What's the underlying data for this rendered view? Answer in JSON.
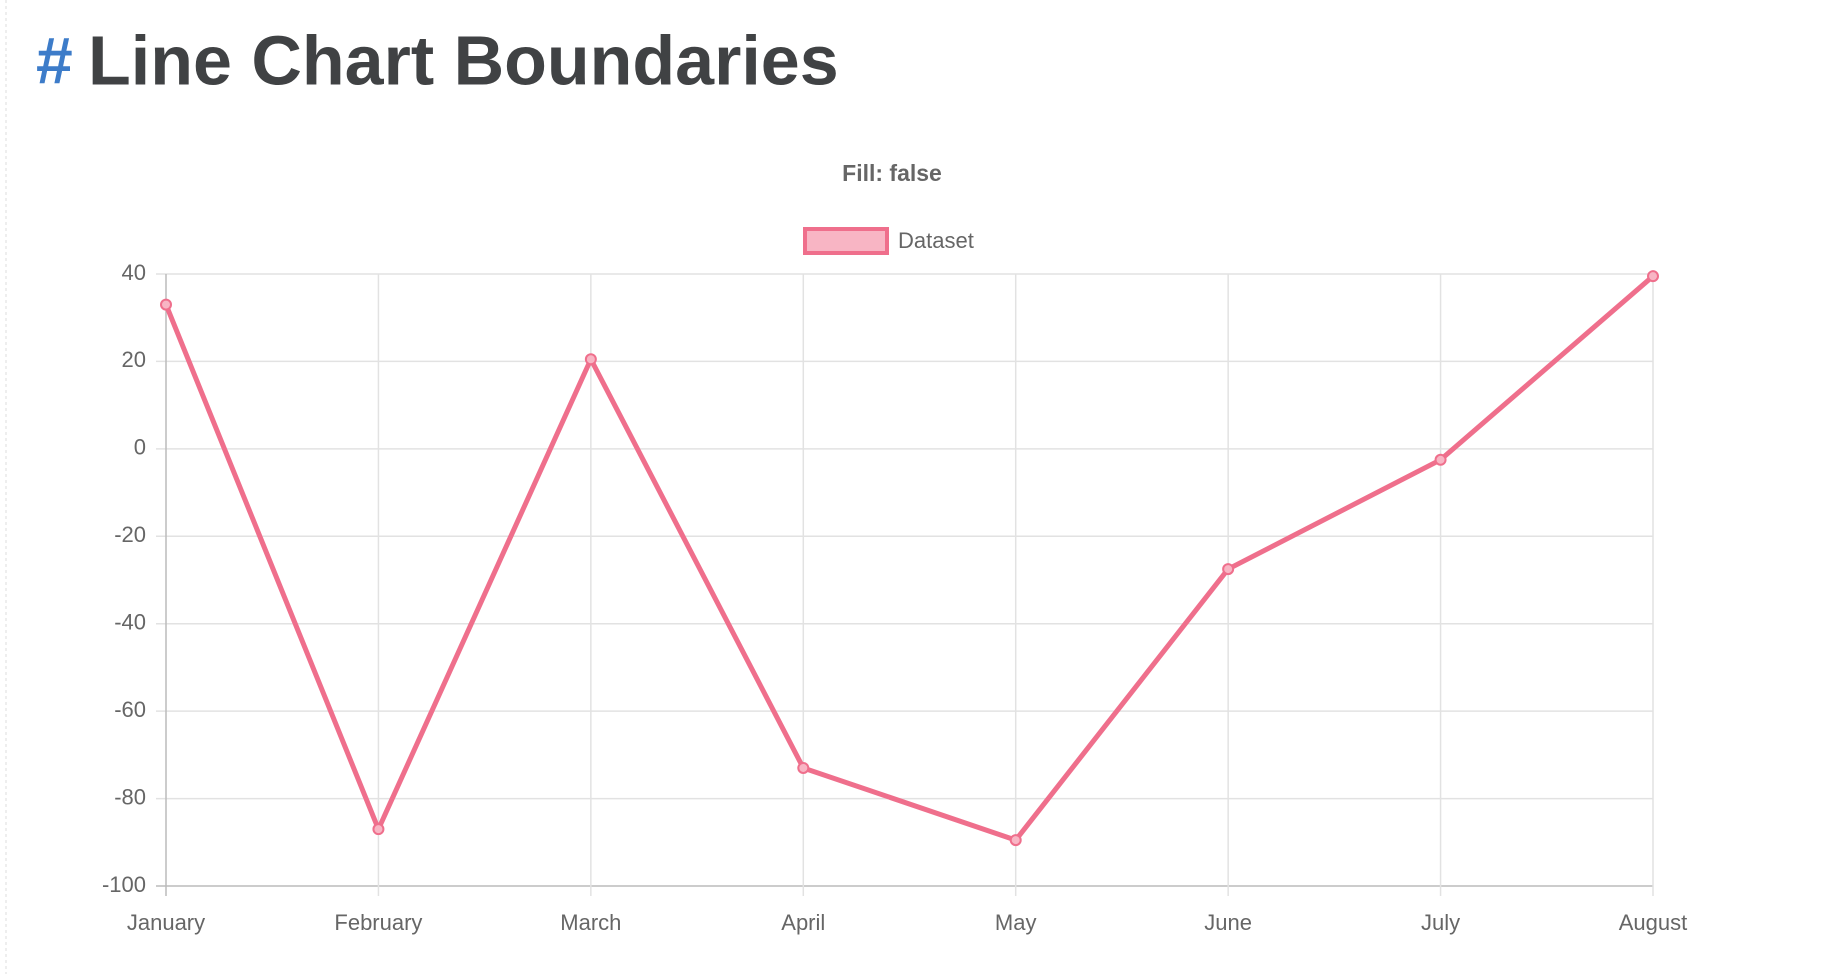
{
  "heading": {
    "anchor": "#",
    "text": "Line Chart Boundaries"
  },
  "chart_data": {
    "type": "line",
    "title": "Fill: false",
    "categories": [
      "January",
      "February",
      "March",
      "April",
      "May",
      "June",
      "July",
      "August"
    ],
    "series": [
      {
        "name": "Dataset",
        "color": "#ef6f8c",
        "fill_color": "#f8b5c4",
        "values": [
          33,
          -87,
          20.5,
          -73,
          -89.5,
          -27.5,
          -2.5,
          39.5
        ]
      }
    ],
    "ylim": [
      -100,
      40
    ],
    "yticks": [
      -100,
      -80,
      -60,
      -40,
      -20,
      0,
      20,
      40
    ],
    "grid": true,
    "legend": "top"
  }
}
